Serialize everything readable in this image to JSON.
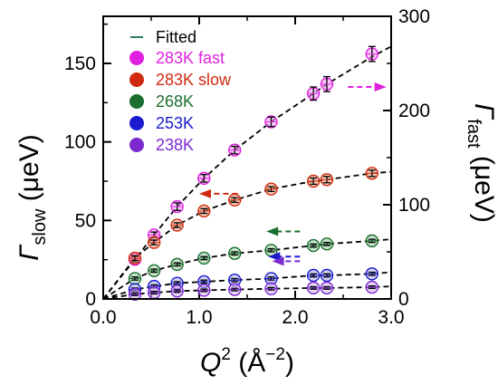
{
  "chart_data": {
    "type": "scatter",
    "x_axis": {
      "label": "Q",
      "label_superscript": "2",
      "unit": " (Å",
      "unit_superscript": "−2",
      "unit_close": ")",
      "range": [
        0.0,
        3.0
      ],
      "ticks": [
        "0.0",
        "1.0",
        "2.0",
        "3.0"
      ],
      "tick_values": [
        0.0,
        1.0,
        2.0,
        3.0
      ],
      "minor_step": 0.5
    },
    "y_left": {
      "label": "Γ",
      "label_subscript": "slow",
      "unit": " (μeV)",
      "range": [
        0,
        180
      ],
      "ticks": [
        "0",
        "50",
        "100",
        "150"
      ],
      "tick_values": [
        0,
        50,
        100,
        150
      ],
      "minor_step": 25
    },
    "y_right": {
      "label": "Γ",
      "label_subscript": "fast",
      "unit": " (μeV)",
      "range": [
        0,
        300
      ],
      "ticks": [
        "0",
        "100",
        "200",
        "300"
      ],
      "tick_values": [
        0,
        100,
        200,
        300
      ],
      "minor_step": 50
    },
    "legend": {
      "placement": "top-left",
      "fitted_label": "Fitted",
      "fitted_color": "#2e7d5b"
    },
    "series": [
      {
        "name": "283K fast",
        "axis": "right",
        "color": "#e020e0",
        "fill": "#f2a0f2",
        "x": [
          0.33,
          0.53,
          0.77,
          1.05,
          1.37,
          1.75,
          2.19,
          2.33,
          2.8
        ],
        "y": [
          42,
          68,
          98,
          128,
          158,
          188,
          218,
          228,
          260
        ],
        "err": [
          3,
          3,
          4,
          4,
          4,
          5,
          7,
          8,
          8
        ],
        "arrow_direction": "right"
      },
      {
        "name": "283K slow",
        "axis": "left",
        "color": "#d02a10",
        "fill": "#f0a080",
        "x": [
          0.33,
          0.53,
          0.77,
          1.05,
          1.37,
          1.75,
          2.19,
          2.33,
          2.8
        ],
        "y": [
          26,
          36,
          47,
          56,
          63,
          70,
          75,
          76,
          80
        ],
        "err": [
          1.5,
          1.5,
          1.5,
          1.5,
          1.5,
          1.5,
          2,
          2,
          2
        ],
        "arrow_direction": "left"
      },
      {
        "name": "268K",
        "axis": "left",
        "color": "#1a6e2e",
        "fill": "#9ad0a0",
        "x": [
          0.33,
          0.53,
          0.77,
          1.05,
          1.37,
          1.75,
          2.19,
          2.33,
          2.8
        ],
        "y": [
          13,
          18,
          22,
          26,
          29,
          31,
          34,
          35,
          37
        ],
        "err": [
          1,
          1,
          1,
          1,
          1,
          1,
          1,
          1,
          1
        ],
        "arrow_direction": "left"
      },
      {
        "name": "253K",
        "axis": "left",
        "color": "#1a1ad0",
        "fill": "#b0b0f0",
        "x": [
          0.33,
          0.53,
          0.77,
          1.05,
          1.37,
          1.75,
          2.19,
          2.33,
          2.8
        ],
        "y": [
          6,
          8,
          10,
          11,
          12,
          13,
          15,
          15,
          16
        ],
        "err": [
          1,
          1,
          1,
          1,
          1,
          1,
          1,
          1,
          1
        ],
        "arrow_direction": "left"
      },
      {
        "name": "238K",
        "axis": "left",
        "color": "#7a28d0",
        "fill": "#d4b0f0",
        "x": [
          0.33,
          0.53,
          0.77,
          1.05,
          1.37,
          1.75,
          2.19,
          2.33,
          2.8
        ],
        "y": [
          3,
          4,
          5,
          5.5,
          6,
          6.5,
          7,
          7,
          7.5
        ],
        "err": [
          0.8,
          0.8,
          0.8,
          0.8,
          0.8,
          0.8,
          0.8,
          0.8,
          0.8
        ],
        "arrow_direction": "left"
      }
    ],
    "fits": [
      {
        "axis": "right",
        "x": [
          0.0,
          0.33,
          0.53,
          0.77,
          1.05,
          1.37,
          1.75,
          2.19,
          2.33,
          2.8,
          3.0
        ],
        "y": [
          0,
          42,
          68,
          98,
          128,
          158,
          188,
          218,
          228,
          257,
          268
        ]
      },
      {
        "axis": "left",
        "x": [
          0.0,
          0.33,
          0.53,
          0.77,
          1.05,
          1.37,
          1.75,
          2.19,
          2.33,
          2.8,
          3.0
        ],
        "y": [
          0,
          26,
          36,
          47,
          56,
          63,
          70,
          75,
          76,
          80,
          81
        ]
      },
      {
        "axis": "left",
        "x": [
          0.0,
          0.33,
          0.53,
          0.77,
          1.05,
          1.37,
          1.75,
          2.19,
          2.33,
          2.8,
          3.0
        ],
        "y": [
          0,
          13,
          18,
          22,
          26,
          29,
          31,
          34,
          35,
          37,
          38
        ]
      },
      {
        "axis": "left",
        "x": [
          0.0,
          0.33,
          0.53,
          0.77,
          1.05,
          1.37,
          1.75,
          2.19,
          2.33,
          2.8,
          3.0
        ],
        "y": [
          0,
          6,
          8,
          10,
          11,
          12,
          13,
          15,
          15,
          16,
          17
        ]
      },
      {
        "axis": "left",
        "x": [
          0.0,
          0.33,
          0.53,
          0.77,
          1.05,
          1.37,
          1.75,
          2.19,
          2.33,
          2.8,
          3.0
        ],
        "y": [
          0,
          3,
          4,
          5,
          5.5,
          6,
          6.5,
          7,
          7,
          7.5,
          8
        ]
      }
    ]
  }
}
